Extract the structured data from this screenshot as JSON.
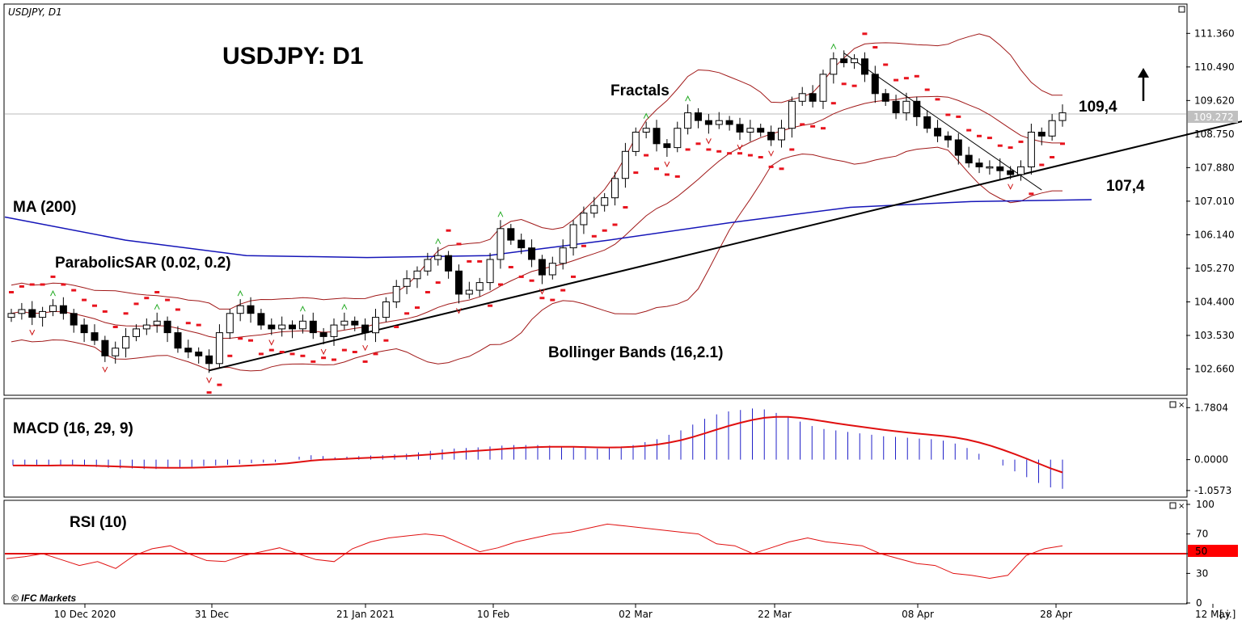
{
  "chart_data": {
    "type": "candlestick",
    "symbol_label": "USDJPY, D1",
    "title": "USDJPY: D1",
    "price_axis": {
      "ticks": [
        "111.360",
        "110.490",
        "109.620",
        "108.750",
        "107.880",
        "107.010",
        "106.140",
        "105.270",
        "104.400",
        "103.530",
        "102.660"
      ],
      "range": [
        102.0,
        112.1
      ],
      "current_price": "109.272"
    },
    "date_axis": {
      "ticks": [
        "10 Dec 2020",
        "31 Dec",
        "21 Jan 2021",
        "10 Feb",
        "02 Mar",
        "22 Mar",
        "08 Apr",
        "28 Apr",
        "12 May"
      ],
      "end_marker": "[.i.]"
    },
    "annotations": {
      "fractals": "Fractals",
      "ma": "MA (200)",
      "sar": "ParabolicSAR (0.02, 0.2)",
      "bollinger": "Bollinger Bands (16,2.1)",
      "target_up": "109,4",
      "support": "107,4"
    },
    "macd": {
      "label": "MACD (16, 29, 9)",
      "ticks": [
        "1.7804",
        "0.0000",
        "-1.0573"
      ],
      "range": [
        -1.2,
        1.9
      ]
    },
    "rsi": {
      "label": "RSI (10)",
      "ticks": [
        "100",
        "70",
        "50",
        "30",
        "0"
      ],
      "level": "50"
    },
    "watermark": "© IFC Markets",
    "colors": {
      "up_candle": "#ffffff",
      "down_candle": "#000000",
      "ma": "#1515b8",
      "bollinger": "#a01818",
      "sar": "#e8141e",
      "macd_hist": "#2020c8",
      "signal": "#e01010",
      "rsi": "#e01010",
      "fractal_up": "#22aa22",
      "fractal_down": "#cc1111"
    },
    "series": {
      "closes": [
        104.1,
        104.2,
        104.0,
        104.15,
        104.3,
        104.1,
        103.8,
        103.6,
        103.4,
        103.0,
        103.2,
        103.5,
        103.7,
        103.8,
        103.9,
        103.6,
        103.2,
        103.1,
        103.0,
        102.8,
        103.6,
        104.1,
        104.3,
        104.1,
        103.8,
        103.7,
        103.8,
        103.7,
        103.9,
        103.6,
        103.5,
        103.8,
        103.9,
        103.8,
        103.6,
        104.0,
        104.4,
        104.8,
        105.0,
        105.2,
        105.5,
        105.6,
        105.2,
        104.6,
        104.7,
        104.9,
        105.5,
        106.3,
        106.0,
        105.8,
        105.5,
        105.1,
        105.4,
        105.8,
        106.4,
        106.7,
        106.9,
        107.1,
        107.6,
        108.3,
        108.8,
        108.9,
        108.5,
        108.4,
        108.9,
        109.3,
        109.1,
        109.0,
        109.1,
        109.0,
        108.8,
        108.9,
        108.8,
        108.6,
        108.9,
        109.6,
        109.8,
        109.6,
        110.3,
        110.7,
        110.6,
        110.7,
        110.3,
        109.8,
        109.6,
        109.3,
        109.6,
        109.2,
        108.9,
        108.7,
        108.6,
        108.2,
        108.0,
        107.9,
        107.9,
        107.8,
        107.7,
        107.9,
        108.8,
        108.7,
        109.1,
        109.3
      ],
      "ma200": [
        106.6,
        106.0,
        105.6,
        105.55,
        105.6,
        106.0,
        106.45,
        106.85,
        107.0,
        107.05
      ],
      "rsi_values": [
        45,
        47,
        50,
        44,
        38,
        42,
        35,
        48,
        55,
        58,
        50,
        43,
        42,
        48,
        52,
        56,
        50,
        44,
        42,
        55,
        62,
        66,
        68,
        70,
        68,
        60,
        52,
        56,
        62,
        66,
        70,
        72,
        76,
        80,
        78,
        76,
        74,
        72,
        70,
        60,
        58,
        50,
        56,
        62,
        66,
        62,
        60,
        58,
        50,
        45,
        40,
        38,
        30,
        28,
        25,
        28,
        48,
        55,
        58
      ],
      "macd_hist": [
        -0.2,
        -0.2,
        -0.22,
        -0.2,
        -0.18,
        -0.2,
        -0.22,
        -0.25,
        -0.28,
        -0.3,
        -0.3,
        -0.32,
        -0.32,
        -0.3,
        -0.28,
        -0.25,
        -0.22,
        -0.2,
        -0.18,
        -0.15,
        -0.12,
        -0.1,
        -0.08,
        0.0,
        0.1,
        0.15,
        0.12,
        0.08,
        0.1,
        0.12,
        0.14,
        0.15,
        0.18,
        0.2,
        0.25,
        0.3,
        0.35,
        0.38,
        0.4,
        0.42,
        0.45,
        0.48,
        0.5,
        0.5,
        0.5,
        0.48,
        0.45,
        0.42,
        0.4,
        0.38,
        0.4,
        0.45,
        0.5,
        0.6,
        0.7,
        0.85,
        1.0,
        1.2,
        1.4,
        1.55,
        1.65,
        1.7,
        1.75,
        1.72,
        1.6,
        1.45,
        1.3,
        1.15,
        1.05,
        1.0,
        0.95,
        0.9,
        0.85,
        0.8,
        0.78,
        0.75,
        0.72,
        0.7,
        0.65,
        0.55,
        0.4,
        0.2,
        0.0,
        -0.2,
        -0.4,
        -0.6,
        -0.8,
        -0.95,
        -1.0
      ]
    }
  }
}
